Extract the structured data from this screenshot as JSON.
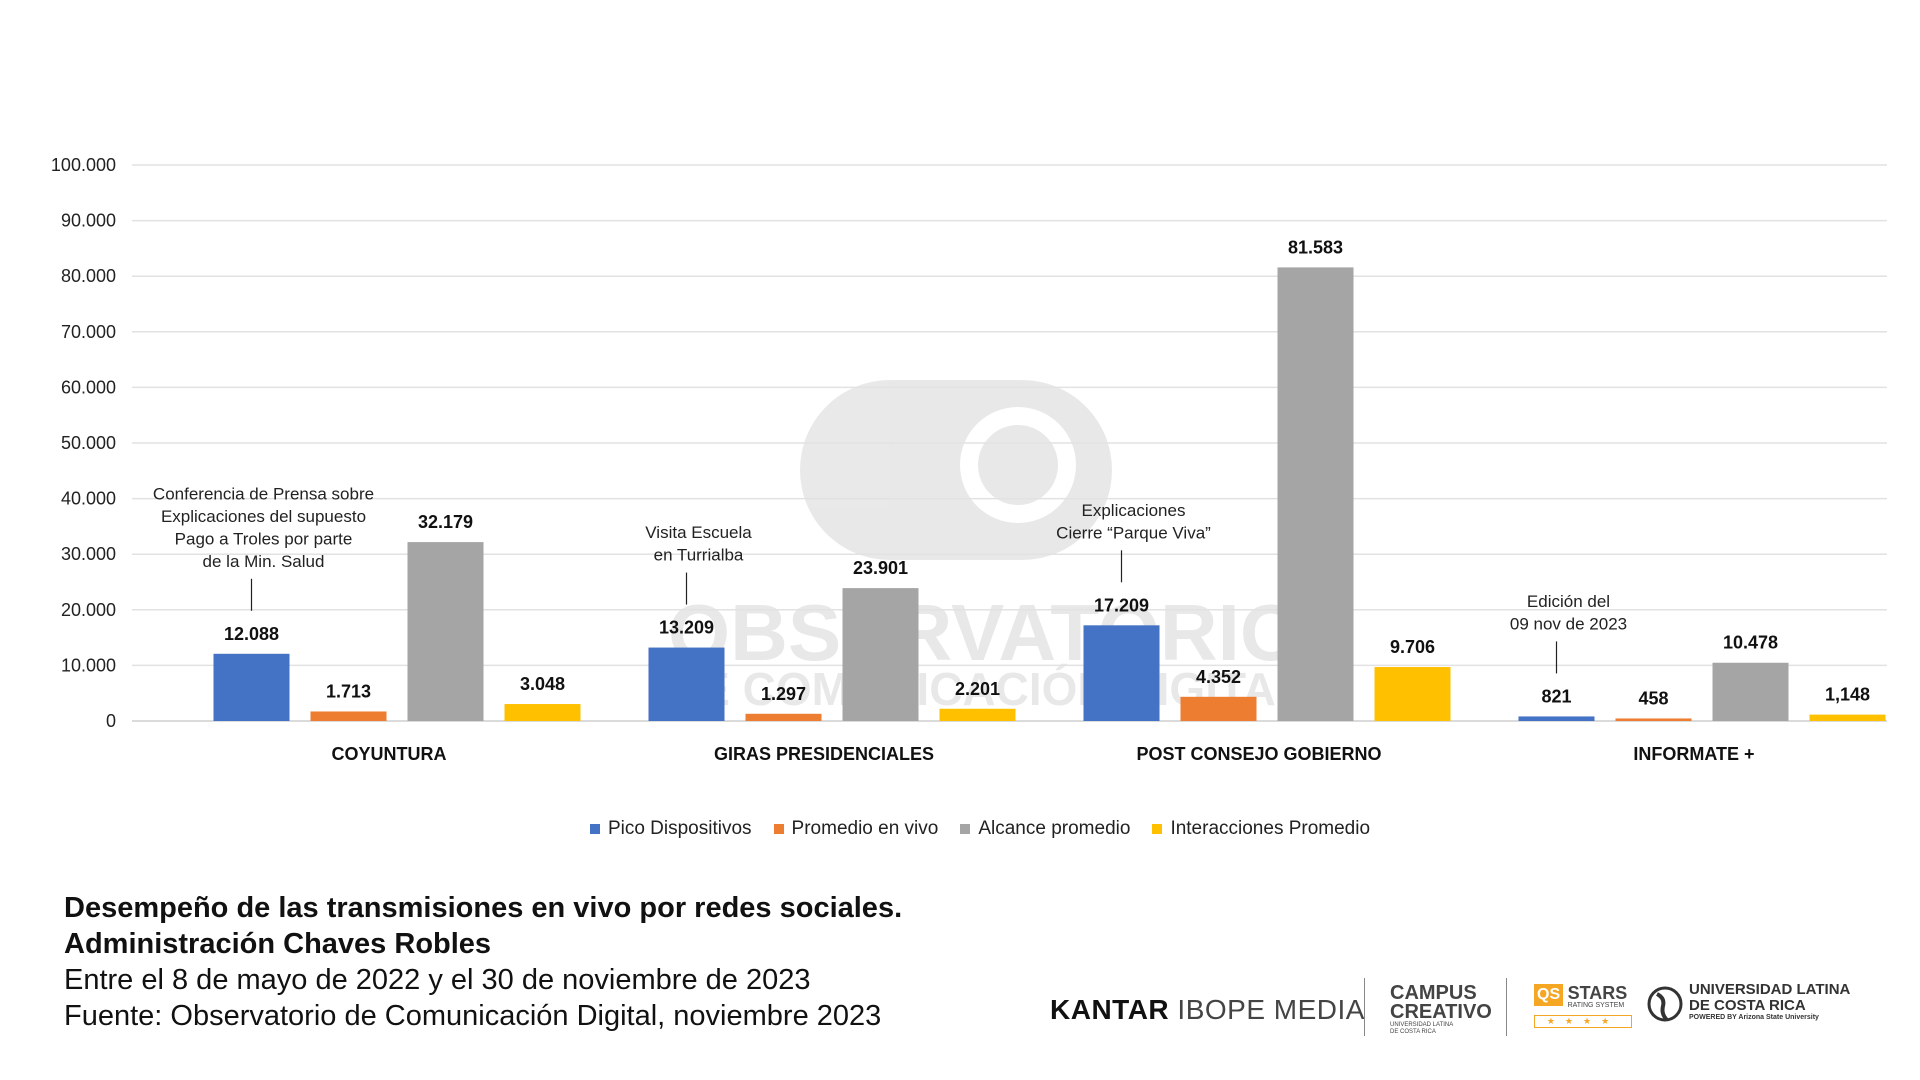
{
  "chart_data": {
    "type": "bar",
    "title": "",
    "xlabel": "",
    "ylabel": "",
    "ylim": [
      0,
      100000
    ],
    "yticks": [
      "0",
      "10.000",
      "20.000",
      "30.000",
      "40.000",
      "50.000",
      "60.000",
      "70.000",
      "80.000",
      "90.000",
      "100.000"
    ],
    "grid": true,
    "legend_position": "bottom",
    "categories": [
      "COYUNTURA",
      "GIRAS PRESIDENCIALES",
      "POST CONSEJO GOBIERNO",
      "INFORMATE +"
    ],
    "series": [
      {
        "name": "Pico Dispositivos",
        "color": "#4472C4",
        "values": [
          12088,
          13209,
          17209,
          821
        ],
        "labels": [
          "12.088",
          "13.209",
          "17.209",
          "821"
        ]
      },
      {
        "name": "Promedio en vivo",
        "color": "#ED7D31",
        "values": [
          1713,
          1297,
          4352,
          458
        ],
        "labels": [
          "1.713",
          "1.297",
          "4.352",
          "458"
        ]
      },
      {
        "name": "Alcance promedio",
        "color": "#A5A5A5",
        "values": [
          32179,
          23901,
          81583,
          10478
        ],
        "labels": [
          "32.179",
          "23.901",
          "81.583",
          "10.478"
        ]
      },
      {
        "name": "Interacciones Promedio",
        "color": "#FFC000",
        "values": [
          3048,
          2201,
          9706,
          1148
        ],
        "labels": [
          "3.048",
          "2.201",
          "9.706",
          "1,148"
        ]
      }
    ],
    "annotations": [
      {
        "category": "COYUNTURA",
        "lines": [
          "Conferencia de Prensa sobre",
          "Explicaciones del supuesto",
          "Pago a Troles por parte",
          "de la Min. Salud"
        ]
      },
      {
        "category": "GIRAS PRESIDENCIALES",
        "lines": [
          "Visita Escuela",
          "en Turrialba"
        ]
      },
      {
        "category": "POST CONSEJO GOBIERNO",
        "lines": [
          "Explicaciones",
          "Cierre “Parque Viva”"
        ]
      },
      {
        "category": "INFORMATE +",
        "lines": [
          "Edición del",
          "09 nov de 2023"
        ]
      }
    ]
  },
  "watermark": {
    "line1": "OBSERVATORIO",
    "line2": "DE COMUNICACIÓN DIGITAL"
  },
  "caption": {
    "title1": "Desempeño de las transmisiones en vivo por redes sociales.",
    "title2": "Administración Chaves Robles",
    "period": "Entre el 8 de mayo de 2022 y el 30 de noviembre de 2023",
    "source": "Fuente: Observatorio de Comunicación Digital, noviembre 2023"
  },
  "logos": {
    "kantar_bold": "KANTAR",
    "kantar_light": "IBOPE MEDIA",
    "campus1": "CAMPUS",
    "campus2": "CREATIVO",
    "campus_sub1": "UNIVERSIDAD LATINA",
    "campus_sub2": "DE COSTA RICA",
    "qs": "QS",
    "qs_stars": "STARS",
    "qs_sub": "RATING SYSTEM",
    "ul1": "UNIVERSIDAD LATINA",
    "ul2": "DE COSTA RICA",
    "ul_sub": "POWERED BY Arizona State University"
  }
}
